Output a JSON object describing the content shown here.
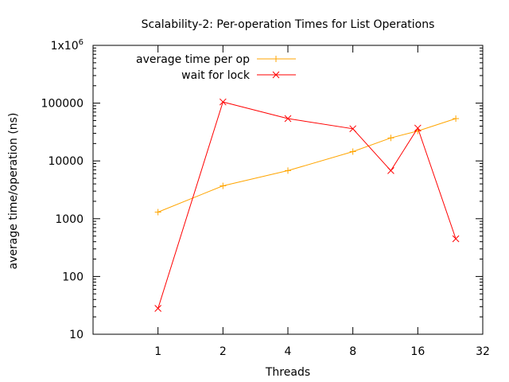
{
  "chart_data": {
    "type": "line",
    "title": "Scalability-2: Per-operation Times for List Operations",
    "xlabel": "Threads",
    "ylabel": "average time/operation (ns)",
    "x_scale": "log2",
    "y_scale": "log10",
    "xlim": [
      0.5,
      32
    ],
    "ylim": [
      10,
      1000000
    ],
    "x_ticks": [
      1,
      2,
      4,
      8,
      16,
      32
    ],
    "x_tick_labels": [
      "1",
      "2",
      "4",
      "8",
      "16",
      "32"
    ],
    "y_ticks": [
      10,
      100,
      1000,
      10000,
      100000,
      1000000
    ],
    "y_tick_labels": [
      "10",
      "100",
      "1000",
      "10000",
      "100000",
      "1x10"
    ],
    "y_top_label_superscript": "6",
    "legend_position": "top-left",
    "grid": false,
    "series": [
      {
        "name": "average time per op",
        "color": "#ffa500",
        "marker": "+",
        "x": [
          1,
          2,
          4,
          8,
          12,
          16,
          24
        ],
        "y": [
          1300,
          3700,
          6800,
          14500,
          25000,
          33000,
          54000
        ]
      },
      {
        "name": "wait for lock",
        "color": "#ff0000",
        "marker": "x",
        "x": [
          1,
          2,
          4,
          8,
          12,
          16,
          24
        ],
        "y": [
          28,
          105000,
          54000,
          36000,
          6800,
          37000,
          450
        ]
      }
    ]
  }
}
